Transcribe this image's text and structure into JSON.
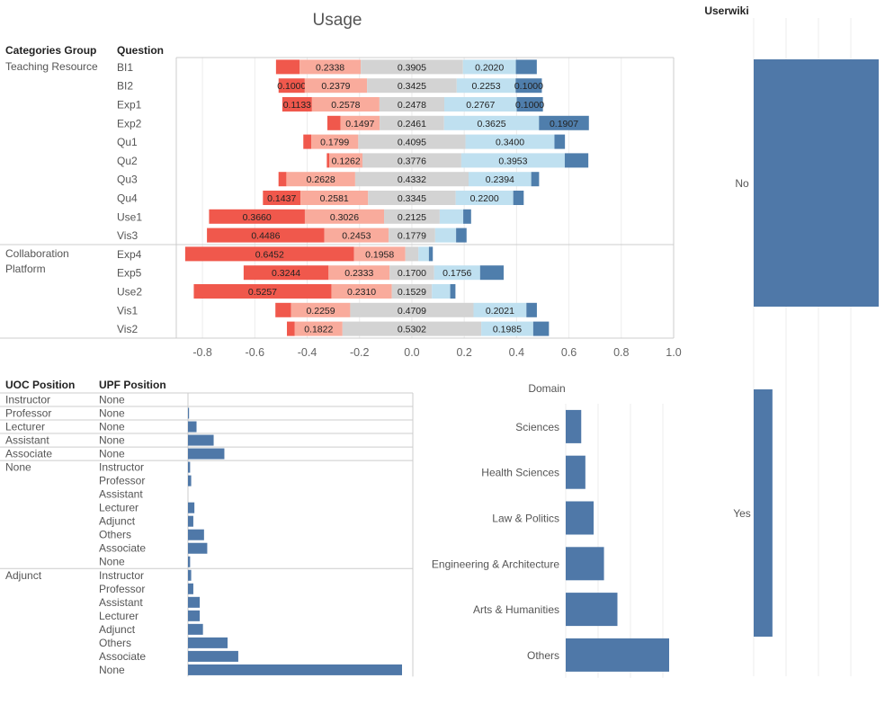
{
  "colors": {
    "strong_neg": "#f0584c",
    "neg": "#f9ab9c",
    "neutral": "#d3d3d3",
    "pos": "#bfe0f0",
    "strong_pos": "#4f7eac",
    "bar": "#4f78a8",
    "grid": "#ececec",
    "border": "#cccccc"
  },
  "usage": {
    "title": "Usage",
    "group_header": "Categories Group",
    "question_header": "Question",
    "groups": [
      {
        "name_lines": [
          "Teaching Resource"
        ],
        "questions": [
          "BI1",
          "BI2",
          "Exp1",
          "Exp2",
          "Qu1",
          "Qu2",
          "Qu3",
          "Qu4",
          "Use1",
          "Vis3"
        ]
      },
      {
        "name_lines": [
          "Collaboration",
          "Platform"
        ],
        "questions": [
          "Exp4",
          "Exp5",
          "Use2",
          "Vis1",
          "Vis2"
        ]
      }
    ]
  },
  "userwiki": {
    "title": "Userwiki",
    "categories": [
      "No",
      "Yes"
    ]
  },
  "positions": {
    "uoc_header": "UOC Position",
    "upf_header": "UPF Position"
  },
  "domain": {
    "title": "Domain"
  },
  "chart_data": [
    {
      "type": "bar",
      "orientation": "horizontal",
      "stacked": "diverging",
      "title": "Usage",
      "segment_order": [
        "strong_negative",
        "negative",
        "neutral",
        "positive",
        "strong_positive"
      ],
      "xlim": [
        -0.9,
        1.0
      ],
      "x_ticks": [
        "-0.8",
        "-0.6",
        "-0.4",
        "-0.2",
        "0.0",
        "0.2",
        "0.4",
        "0.6",
        "0.8",
        "1.0"
      ],
      "x_tick_values": [
        -0.8,
        -0.6,
        -0.4,
        -0.2,
        0.0,
        0.2,
        0.4,
        0.6,
        0.8,
        1.0
      ],
      "rows": [
        {
          "group": "Teaching Resource",
          "question": "BI1",
          "values": [
            0.09,
            0.2338,
            0.3905,
            0.202,
            0.08
          ]
        },
        {
          "group": "Teaching Resource",
          "question": "BI2",
          "values": [
            0.1,
            0.2379,
            0.3425,
            0.2253,
            0.1
          ]
        },
        {
          "group": "Teaching Resource",
          "question": "Exp1",
          "values": [
            0.1133,
            0.2578,
            0.2478,
            0.2767,
            0.1
          ]
        },
        {
          "group": "Teaching Resource",
          "question": "Exp2",
          "values": [
            0.05,
            0.1497,
            0.2461,
            0.3625,
            0.1907
          ]
        },
        {
          "group": "Teaching Resource",
          "question": "Qu1",
          "values": [
            0.03,
            0.1799,
            0.4095,
            0.34,
            0.04
          ]
        },
        {
          "group": "Teaching Resource",
          "question": "Qu2",
          "values": [
            0.01,
            0.1262,
            0.3776,
            0.3953,
            0.09
          ]
        },
        {
          "group": "Teaching Resource",
          "question": "Qu3",
          "values": [
            0.03,
            0.2628,
            0.4332,
            0.2394,
            0.03
          ]
        },
        {
          "group": "Teaching Resource",
          "question": "Qu4",
          "values": [
            0.1437,
            0.2581,
            0.3345,
            0.22,
            0.04
          ]
        },
        {
          "group": "Teaching Resource",
          "question": "Use1",
          "values": [
            0.366,
            0.3026,
            0.2125,
            0.09,
            0.03
          ]
        },
        {
          "group": "Teaching Resource",
          "question": "Vis3",
          "values": [
            0.4486,
            0.2453,
            0.1779,
            0.08,
            0.04
          ]
        },
        {
          "group": "Collaboration Platform",
          "question": "Exp4",
          "values": [
            0.6452,
            0.1958,
            0.05,
            0.04,
            0.015
          ]
        },
        {
          "group": "Collaboration Platform",
          "question": "Exp5",
          "values": [
            0.3244,
            0.2333,
            0.17,
            0.1756,
            0.09
          ]
        },
        {
          "group": "Collaboration Platform",
          "question": "Use2",
          "values": [
            0.5257,
            0.231,
            0.1529,
            0.07,
            0.02
          ]
        },
        {
          "group": "Collaboration Platform",
          "question": "Vis1",
          "values": [
            0.06,
            0.2259,
            0.4709,
            0.2021,
            0.04
          ]
        },
        {
          "group": "Collaboration Platform",
          "question": "Vis2",
          "values": [
            0.03,
            0.1822,
            0.5302,
            0.1985,
            0.06
          ]
        }
      ]
    },
    {
      "type": "bar",
      "orientation": "horizontal",
      "title": "Userwiki",
      "categories": [
        "No",
        "Yes"
      ],
      "values": [
        1.0,
        0.15
      ]
    },
    {
      "type": "bar",
      "orientation": "horizontal",
      "categories_header": [
        "UOC Position",
        "UPF Position"
      ],
      "groups": [
        {
          "uoc": "Instructor",
          "rows": [
            {
              "upf": "None",
              "value": 0
            }
          ]
        },
        {
          "uoc": "Professor",
          "rows": [
            {
              "upf": "None",
              "value": 0.5
            }
          ]
        },
        {
          "uoc": "Lecturer",
          "rows": [
            {
              "upf": "None",
              "value": 4
            }
          ]
        },
        {
          "uoc": "Assistant",
          "rows": [
            {
              "upf": "None",
              "value": 12
            }
          ]
        },
        {
          "uoc": "Associate",
          "rows": [
            {
              "upf": "None",
              "value": 17
            }
          ]
        },
        {
          "uoc": "None",
          "rows": [
            {
              "upf": "Instructor",
              "value": 1
            },
            {
              "upf": "Professor",
              "value": 1.5
            },
            {
              "upf": "Assistant",
              "value": 0
            },
            {
              "upf": "Lecturer",
              "value": 3
            },
            {
              "upf": "Adjunct",
              "value": 2.5
            },
            {
              "upf": "Others",
              "value": 7.5
            },
            {
              "upf": "Associate",
              "value": 9
            },
            {
              "upf": "None",
              "value": 1
            }
          ]
        },
        {
          "uoc": "Adjunct",
          "rows": [
            {
              "upf": "Instructor",
              "value": 1.5
            },
            {
              "upf": "Professor",
              "value": 2.5
            },
            {
              "upf": "Assistant",
              "value": 5.5
            },
            {
              "upf": "Lecturer",
              "value": 5.5
            },
            {
              "upf": "Adjunct",
              "value": 7
            },
            {
              "upf": "Others",
              "value": 18.5
            },
            {
              "upf": "Associate",
              "value": 23.5
            },
            {
              "upf": "None",
              "value": 100
            }
          ]
        }
      ]
    },
    {
      "type": "bar",
      "orientation": "horizontal",
      "title": "Domain",
      "categories": [
        "Sciences",
        "Health Sciences",
        "Law & Politics",
        "Engineering & Architecture",
        "Arts & Humanities",
        "Others"
      ],
      "values": [
        15,
        19,
        27,
        37,
        50,
        100
      ]
    }
  ]
}
